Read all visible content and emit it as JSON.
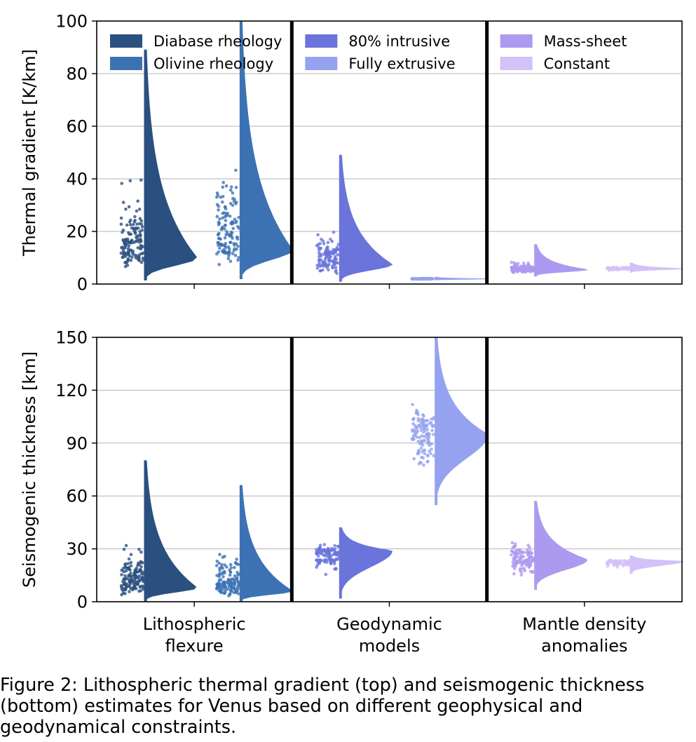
{
  "caption": "Figure 2: Lithospheric thermal gradient (top) and seismogenic thickness (bottom) estimates for Venus based on different geophysical and geodynamical constraints.",
  "chart_data": [
    {
      "type": "violin",
      "title": "",
      "xlabel": "",
      "ylabel": "Thermal gradient [K/km]",
      "ylim": [
        0,
        100
      ],
      "yticks": [
        0,
        20,
        40,
        60,
        80,
        100
      ],
      "grid": "horizontal",
      "categories": [
        "Lithospheric\nflexure",
        "Geodynamic\nmodels",
        "Mantle density\nanomalies"
      ],
      "legend_placement": "top of each panel",
      "series": [
        {
          "group": 0,
          "name": "Diabase rheology",
          "color": "#2a5080",
          "min": 1.5,
          "mode": 10,
          "max": 89,
          "n": 130
        },
        {
          "group": 0,
          "name": "Olivine rheology",
          "color": "#3c72b4",
          "min": 2,
          "mode": 13,
          "max": 100,
          "n": 130
        },
        {
          "group": 1,
          "name": "80% intrusive",
          "color": "#6a74da",
          "min": 1,
          "mode": 7.5,
          "max": 49,
          "n": 110
        },
        {
          "group": 1,
          "name": "Fully extrusive",
          "color": "#95a2f0",
          "min": 1.6,
          "mode": 2,
          "max": 2.6,
          "n": 70
        },
        {
          "group": 2,
          "name": "Mass-sheet",
          "color": "#ac9af0",
          "min": 3,
          "mode": 5.5,
          "max": 15,
          "n": 100
        },
        {
          "group": 2,
          "name": "Constant",
          "color": "#d3c1f8",
          "min": 4.5,
          "mode": 5.9,
          "max": 8,
          "n": 60
        }
      ]
    },
    {
      "type": "violin",
      "title": "",
      "xlabel": "",
      "ylabel": "Seismogenic thickness [km]",
      "ylim": [
        0,
        150
      ],
      "yticks": [
        0,
        30,
        60,
        90,
        120,
        150
      ],
      "grid": "horizontal",
      "categories": [
        "Lithospheric\nflexure",
        "Geodynamic\nmodels",
        "Mantle density\nanomalies"
      ],
      "series": [
        {
          "group": 0,
          "name": "Diabase rheology",
          "color": "#2a5080",
          "min": 0.5,
          "mode": 8,
          "max": 80,
          "n": 130
        },
        {
          "group": 0,
          "name": "Olivine rheology",
          "color": "#3c72b4",
          "min": 0.5,
          "mode": 6,
          "max": 66,
          "n": 130
        },
        {
          "group": 1,
          "name": "80% intrusive",
          "color": "#6a74da",
          "min": 2,
          "mode": 29,
          "max": 42,
          "n": 110
        },
        {
          "group": 1,
          "name": "Fully extrusive",
          "color": "#95a2f0",
          "min": 55,
          "mode": 95,
          "max": 150,
          "n": 120
        },
        {
          "group": 2,
          "name": "Mass-sheet",
          "color": "#ac9af0",
          "min": 7,
          "mode": 24,
          "max": 57,
          "n": 110
        },
        {
          "group": 2,
          "name": "Constant",
          "color": "#d3c1f8",
          "min": 16,
          "mode": 23,
          "max": 26,
          "n": 60
        }
      ]
    }
  ]
}
